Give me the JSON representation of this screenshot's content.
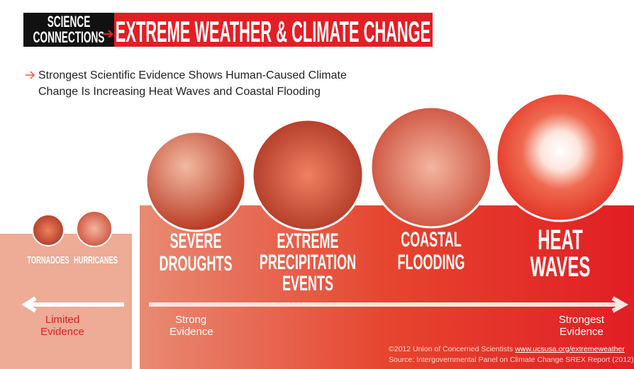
{
  "header": {
    "badge": [
      "SCIENCE",
      "CONNECTIONS"
    ],
    "title": "EXTREME WEATHER & CLIMATE CHANGE"
  },
  "subtitle": [
    "Strongest Scientific Evidence Shows Human-Caused Climate",
    "Change Is Increasing Heat Waves and Coastal Flooding"
  ],
  "limited": {
    "items": [
      "TORNADOES",
      "HURRICANES"
    ],
    "evidence": [
      "Limited",
      "Evidence"
    ]
  },
  "strong": {
    "items": [
      [
        "SEVERE",
        "DROUGHTS"
      ],
      [
        "EXTREME",
        "PRECIPITATION",
        "EVENTS"
      ],
      [
        "COASTAL",
        "FLOODING"
      ],
      [
        "HEAT",
        "WAVES"
      ]
    ],
    "evidence_start": [
      "Strong",
      "Evidence"
    ],
    "evidence_end": [
      "Strongest",
      "Evidence"
    ]
  },
  "footer": {
    "credit": "©2012 Union of Concerned Scientists",
    "link": "www.ucsusa.org/extremeweather",
    "source": "Source: Intergovernmental Panel on Climate Change SREX Report (2012)"
  }
}
